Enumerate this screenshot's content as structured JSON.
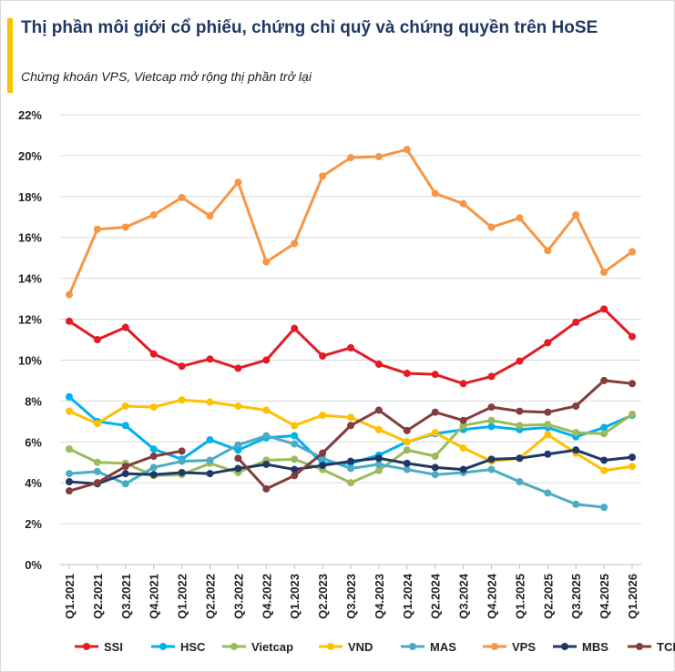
{
  "header": {
    "title": "Thị phần môi giới cổ phiếu, chứng chỉ quỹ và chứng quyền trên HoSE",
    "subtitle": "Chứng khoán VPS, Vietcap mở rộng thị phần trở lại"
  },
  "colors": {
    "accent": "#f5c400",
    "title": "#1f3864",
    "grid": "#d9d9d9"
  },
  "chart_data": {
    "type": "line",
    "title": "Thị phần môi giới cổ phiếu, chứng chỉ quỹ và chứng quyền trên HoSE",
    "subtitle": "Chứng khoán VPS, Vietcap mở rộng thị phần trở lại",
    "xlabel": "",
    "ylabel": "",
    "ylim": [
      0,
      22
    ],
    "y_ticks": [
      0,
      2,
      4,
      6,
      8,
      10,
      12,
      14,
      16,
      18,
      20,
      22
    ],
    "y_tick_labels": [
      "0%",
      "2%",
      "4%",
      "6%",
      "8%",
      "10%",
      "12%",
      "14%",
      "16%",
      "18%",
      "20%",
      "22%"
    ],
    "grid": "horizontal",
    "legend": "bottom",
    "categories": [
      "Q1.2021",
      "Q2.2021",
      "Q3.2021",
      "Q4.2021",
      "Q1.2022",
      "Q2.2022",
      "Q3.2022",
      "Q4.2022",
      "Q1.2023",
      "Q2.2023",
      "Q3.2023",
      "Q4.2023",
      "Q1.2024",
      "Q2.2024",
      "Q3.2024",
      "Q4.2024",
      "Q1.2025",
      "Q2.2025",
      "Q3.2025",
      "Q4.2025",
      "Q1.2026"
    ],
    "series": [
      {
        "name": "SSI",
        "color": "#e31b23",
        "values": [
          11.9,
          11.0,
          11.6,
          10.3,
          9.7,
          10.05,
          9.6,
          10.0,
          11.55,
          10.2,
          10.6,
          9.8,
          9.35,
          9.3,
          8.85,
          9.2,
          9.95,
          10.85,
          11.85,
          12.5,
          11.15
        ]
      },
      {
        "name": "HSC",
        "color": "#00b0f0",
        "values": [
          8.2,
          7.0,
          6.8,
          5.65,
          5.15,
          6.1,
          5.6,
          6.2,
          6.3,
          4.95,
          4.95,
          5.35,
          6.0,
          6.4,
          6.6,
          6.75,
          6.6,
          6.7,
          6.25,
          6.7,
          7.3
        ]
      },
      {
        "name": "Vietcap",
        "color": "#9bbb59",
        "values": [
          5.65,
          5.0,
          4.95,
          4.35,
          4.4,
          4.95,
          4.5,
          5.1,
          5.15,
          4.65,
          4.0,
          4.6,
          5.6,
          5.3,
          6.8,
          7.05,
          6.8,
          6.85,
          6.45,
          6.4,
          7.35
        ]
      },
      {
        "name": "VND",
        "color": "#ffc000",
        "values": [
          7.5,
          6.9,
          7.75,
          7.7,
          8.05,
          7.95,
          7.75,
          7.55,
          6.8,
          7.3,
          7.2,
          6.6,
          6.0,
          6.45,
          5.7,
          5.05,
          5.2,
          6.35,
          5.45,
          4.6,
          4.8
        ]
      },
      {
        "name": "MAS",
        "color": "#4bacc6",
        "values": [
          4.45,
          4.55,
          3.95,
          4.75,
          5.05,
          5.1,
          5.85,
          6.3,
          5.9,
          5.2,
          4.7,
          4.9,
          4.65,
          4.4,
          4.5,
          4.65,
          4.05,
          3.5,
          2.95,
          2.8,
          null
        ]
      },
      {
        "name": "VPS",
        "color": "#f79646",
        "values": [
          13.2,
          16.4,
          16.5,
          17.1,
          17.95,
          17.05,
          18.7,
          14.8,
          15.7,
          19.0,
          19.9,
          19.95,
          20.3,
          18.15,
          17.65,
          16.5,
          16.95,
          15.35,
          17.1,
          14.3,
          15.3
        ]
      },
      {
        "name": "MBS",
        "color": "#1f3864",
        "values": [
          4.05,
          3.95,
          4.45,
          4.4,
          4.5,
          4.45,
          4.7,
          4.9,
          4.65,
          4.85,
          5.05,
          5.2,
          4.95,
          4.75,
          4.65,
          5.15,
          5.2,
          5.4,
          5.6,
          5.1,
          5.25
        ]
      },
      {
        "name": "TCBS",
        "color": "#843c3c",
        "values": [
          3.6,
          4.0,
          4.8,
          5.3,
          5.55,
          null,
          5.2,
          3.7,
          4.35,
          5.45,
          6.8,
          7.55,
          6.55,
          7.45,
          7.05,
          7.7,
          7.5,
          7.45,
          7.75,
          9.0,
          8.85
        ]
      }
    ]
  }
}
